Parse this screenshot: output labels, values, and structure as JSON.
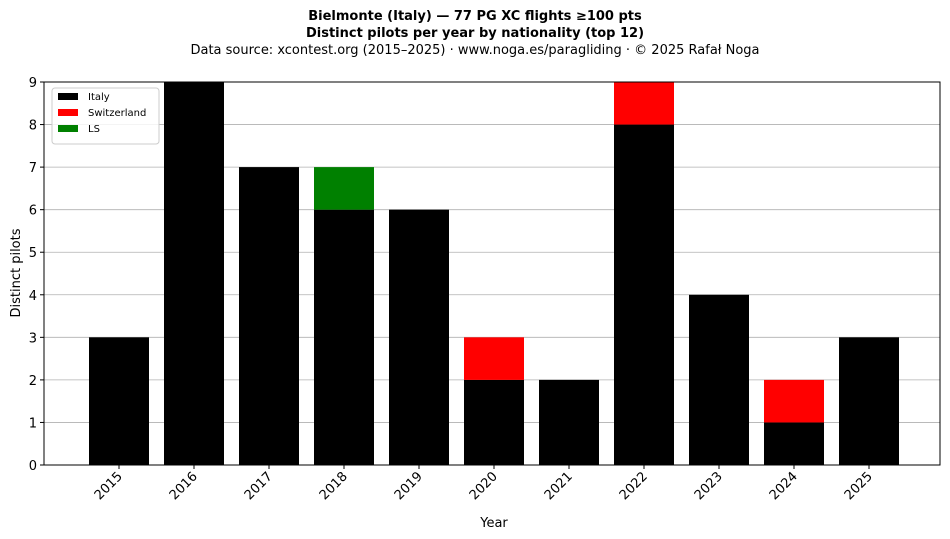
{
  "title_lines": [
    "Bielmonte (Italy)  —  77 PG XC flights ≥100 pts",
    "Distinct pilots per year by nationality (top 12)"
  ],
  "subtitle": "Data source: xcontest.org (2015–2025)  ·  www.noga.es/paragliding  ·  © 2025 Rafał Noga",
  "chart_data": {
    "type": "bar",
    "stacked": true,
    "xlabel": "Year",
    "ylabel": "Distinct pilots",
    "ylim": [
      0,
      9
    ],
    "yticks": [
      0,
      1,
      2,
      3,
      4,
      5,
      6,
      7,
      8,
      9
    ],
    "grid": "horizontal",
    "legend_position": "top-left",
    "categories": [
      "2015",
      "2016",
      "2017",
      "2018",
      "2019",
      "2020",
      "2021",
      "2022",
      "2023",
      "2024",
      "2025"
    ],
    "series": [
      {
        "name": "Italy",
        "color": "#000000",
        "values": [
          3,
          9,
          7,
          6,
          6,
          2,
          2,
          8,
          4,
          1,
          3
        ]
      },
      {
        "name": "Switzerland",
        "color": "#ff0000",
        "values": [
          0,
          0,
          0,
          0,
          0,
          1,
          0,
          1,
          0,
          1,
          0
        ]
      },
      {
        "name": "LS",
        "color": "#008000",
        "values": [
          0,
          0,
          0,
          1,
          0,
          0,
          0,
          0,
          0,
          0,
          0
        ]
      }
    ]
  }
}
